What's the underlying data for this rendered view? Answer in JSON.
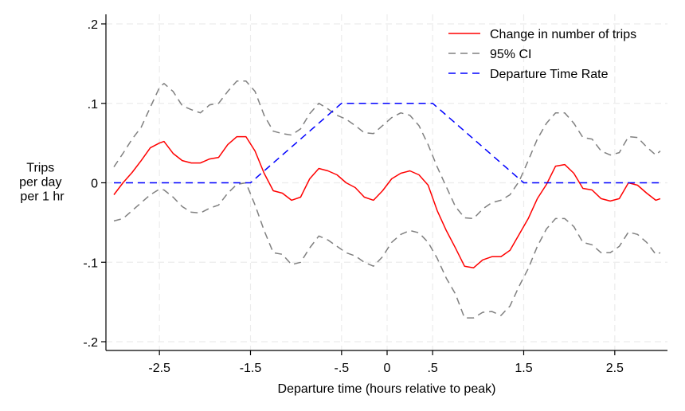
{
  "chart_data": {
    "type": "line",
    "title": "",
    "xlabel": "Departure time (hours relative to peak)",
    "ylabel_lines": [
      "Trips",
      "per day",
      "per 1 hr"
    ],
    "xlim": [
      -3.0,
      3.0
    ],
    "ylim": [
      -0.2,
      0.2
    ],
    "x_ticks": [
      -2.5,
      -1.5,
      -0.5,
      0,
      0.5,
      1.5,
      2.5
    ],
    "x_tick_labels": [
      "-2.5",
      "-1.5",
      "-.5",
      "0",
      ".5",
      "1.5",
      "2.5"
    ],
    "y_ticks": [
      0.2,
      0.1,
      0,
      -0.1,
      -0.2
    ],
    "y_tick_labels": [
      ".2",
      ".1",
      "0",
      "-.1",
      "-.2"
    ],
    "grid": true,
    "legend_position": "top-right",
    "series": [
      {
        "name": "Change in number of trips",
        "color": "#ff0000",
        "style": "solid",
        "points": [
          [
            -3.0,
            -0.015
          ],
          [
            -2.9,
            0.0
          ],
          [
            -2.8,
            0.013
          ],
          [
            -2.7,
            0.028
          ],
          [
            -2.6,
            0.044
          ],
          [
            -2.5,
            0.05
          ],
          [
            -2.45,
            0.052
          ],
          [
            -2.35,
            0.037
          ],
          [
            -2.25,
            0.028
          ],
          [
            -2.15,
            0.025
          ],
          [
            -2.05,
            0.025
          ],
          [
            -1.95,
            0.03
          ],
          [
            -1.85,
            0.032
          ],
          [
            -1.75,
            0.048
          ],
          [
            -1.65,
            0.058
          ],
          [
            -1.55,
            0.058
          ],
          [
            -1.45,
            0.04
          ],
          [
            -1.35,
            0.012
          ],
          [
            -1.25,
            -0.01
          ],
          [
            -1.15,
            -0.013
          ],
          [
            -1.05,
            -0.022
          ],
          [
            -0.95,
            -0.018
          ],
          [
            -0.85,
            0.005
          ],
          [
            -0.75,
            0.018
          ],
          [
            -0.65,
            0.015
          ],
          [
            -0.55,
            0.01
          ],
          [
            -0.45,
            0.0
          ],
          [
            -0.35,
            -0.006
          ],
          [
            -0.25,
            -0.018
          ],
          [
            -0.15,
            -0.022
          ],
          [
            -0.05,
            -0.01
          ],
          [
            0.05,
            0.005
          ],
          [
            0.15,
            0.012
          ],
          [
            0.25,
            0.015
          ],
          [
            0.35,
            0.01
          ],
          [
            0.45,
            -0.003
          ],
          [
            0.55,
            -0.035
          ],
          [
            0.65,
            -0.06
          ],
          [
            0.75,
            -0.082
          ],
          [
            0.85,
            -0.105
          ],
          [
            0.95,
            -0.107
          ],
          [
            1.05,
            -0.097
          ],
          [
            1.15,
            -0.093
          ],
          [
            1.25,
            -0.093
          ],
          [
            1.35,
            -0.085
          ],
          [
            1.45,
            -0.065
          ],
          [
            1.55,
            -0.045
          ],
          [
            1.65,
            -0.02
          ],
          [
            1.75,
            -0.002
          ],
          [
            1.85,
            0.021
          ],
          [
            1.95,
            0.023
          ],
          [
            2.05,
            0.012
          ],
          [
            2.15,
            -0.007
          ],
          [
            2.25,
            -0.009
          ],
          [
            2.35,
            -0.02
          ],
          [
            2.45,
            -0.023
          ],
          [
            2.55,
            -0.02
          ],
          [
            2.65,
            0.0
          ],
          [
            2.75,
            -0.003
          ],
          [
            2.85,
            -0.013
          ],
          [
            2.95,
            -0.022
          ],
          [
            3.0,
            -0.02
          ]
        ]
      },
      {
        "name": "95% CI",
        "color": "#808080",
        "style": "dashed",
        "points": [
          [
            -3.0,
            0.02
          ],
          [
            -2.9,
            0.037
          ],
          [
            -2.8,
            0.055
          ],
          [
            -2.7,
            0.07
          ],
          [
            -2.6,
            0.095
          ],
          [
            -2.5,
            0.12
          ],
          [
            -2.45,
            0.125
          ],
          [
            -2.35,
            0.115
          ],
          [
            -2.25,
            0.097
          ],
          [
            -2.15,
            0.092
          ],
          [
            -2.05,
            0.088
          ],
          [
            -1.95,
            0.098
          ],
          [
            -1.85,
            0.1
          ],
          [
            -1.75,
            0.115
          ],
          [
            -1.65,
            0.128
          ],
          [
            -1.55,
            0.128
          ],
          [
            -1.45,
            0.115
          ],
          [
            -1.35,
            0.085
          ],
          [
            -1.25,
            0.065
          ],
          [
            -1.15,
            0.062
          ],
          [
            -1.05,
            0.06
          ],
          [
            -0.95,
            0.068
          ],
          [
            -0.85,
            0.087
          ],
          [
            -0.75,
            0.1
          ],
          [
            -0.65,
            0.093
          ],
          [
            -0.55,
            0.085
          ],
          [
            -0.45,
            0.08
          ],
          [
            -0.35,
            0.072
          ],
          [
            -0.25,
            0.063
          ],
          [
            -0.15,
            0.062
          ],
          [
            -0.05,
            0.072
          ],
          [
            0.05,
            0.082
          ],
          [
            0.15,
            0.088
          ],
          [
            0.25,
            0.085
          ],
          [
            0.35,
            0.072
          ],
          [
            0.45,
            0.048
          ],
          [
            0.55,
            0.02
          ],
          [
            0.65,
            -0.005
          ],
          [
            0.75,
            -0.03
          ],
          [
            0.85,
            -0.044
          ],
          [
            0.95,
            -0.045
          ],
          [
            1.05,
            -0.033
          ],
          [
            1.15,
            -0.025
          ],
          [
            1.25,
            -0.022
          ],
          [
            1.35,
            -0.015
          ],
          [
            1.45,
            0.002
          ],
          [
            1.55,
            0.028
          ],
          [
            1.65,
            0.055
          ],
          [
            1.75,
            0.075
          ],
          [
            1.85,
            0.088
          ],
          [
            1.95,
            0.088
          ],
          [
            2.05,
            0.075
          ],
          [
            2.15,
            0.057
          ],
          [
            2.25,
            0.055
          ],
          [
            2.35,
            0.04
          ],
          [
            2.45,
            0.035
          ],
          [
            2.55,
            0.038
          ],
          [
            2.65,
            0.058
          ],
          [
            2.75,
            0.057
          ],
          [
            2.85,
            0.045
          ],
          [
            2.95,
            0.035
          ],
          [
            3.0,
            0.04
          ]
        ]
      },
      {
        "name": "95% CI",
        "color": "#808080",
        "style": "dashed",
        "show_in_legend": false,
        "points": [
          [
            -3.0,
            -0.048
          ],
          [
            -2.9,
            -0.045
          ],
          [
            -2.8,
            -0.035
          ],
          [
            -2.7,
            -0.025
          ],
          [
            -2.6,
            -0.015
          ],
          [
            -2.5,
            -0.008
          ],
          [
            -2.45,
            -0.009
          ],
          [
            -2.35,
            -0.018
          ],
          [
            -2.25,
            -0.03
          ],
          [
            -2.15,
            -0.037
          ],
          [
            -2.05,
            -0.038
          ],
          [
            -1.95,
            -0.032
          ],
          [
            -1.85,
            -0.028
          ],
          [
            -1.75,
            -0.013
          ],
          [
            -1.65,
            -0.002
          ],
          [
            -1.55,
            0.0
          ],
          [
            -1.45,
            -0.028
          ],
          [
            -1.35,
            -0.06
          ],
          [
            -1.25,
            -0.088
          ],
          [
            -1.15,
            -0.09
          ],
          [
            -1.05,
            -0.103
          ],
          [
            -0.95,
            -0.1
          ],
          [
            -0.85,
            -0.082
          ],
          [
            -0.75,
            -0.067
          ],
          [
            -0.65,
            -0.072
          ],
          [
            -0.55,
            -0.08
          ],
          [
            -0.45,
            -0.088
          ],
          [
            -0.35,
            -0.092
          ],
          [
            -0.25,
            -0.1
          ],
          [
            -0.15,
            -0.105
          ],
          [
            -0.05,
            -0.093
          ],
          [
            0.05,
            -0.075
          ],
          [
            0.15,
            -0.065
          ],
          [
            0.25,
            -0.06
          ],
          [
            0.35,
            -0.063
          ],
          [
            0.45,
            -0.075
          ],
          [
            0.55,
            -0.095
          ],
          [
            0.65,
            -0.12
          ],
          [
            0.75,
            -0.14
          ],
          [
            0.85,
            -0.17
          ],
          [
            0.95,
            -0.17
          ],
          [
            1.05,
            -0.163
          ],
          [
            1.15,
            -0.162
          ],
          [
            1.25,
            -0.167
          ],
          [
            1.35,
            -0.155
          ],
          [
            1.45,
            -0.13
          ],
          [
            1.55,
            -0.108
          ],
          [
            1.65,
            -0.08
          ],
          [
            1.75,
            -0.058
          ],
          [
            1.85,
            -0.045
          ],
          [
            1.95,
            -0.045
          ],
          [
            2.05,
            -0.055
          ],
          [
            2.15,
            -0.075
          ],
          [
            2.25,
            -0.078
          ],
          [
            2.35,
            -0.088
          ],
          [
            2.45,
            -0.088
          ],
          [
            2.55,
            -0.08
          ],
          [
            2.65,
            -0.062
          ],
          [
            2.75,
            -0.065
          ],
          [
            2.85,
            -0.075
          ],
          [
            2.95,
            -0.09
          ],
          [
            3.0,
            -0.088
          ]
        ]
      },
      {
        "name": "Departure Time Rate",
        "color": "#0000ff",
        "style": "dashed",
        "points": [
          [
            -3.0,
            0.0
          ],
          [
            -1.5,
            0.0
          ],
          [
            -0.5,
            0.1
          ],
          [
            0.5,
            0.1
          ],
          [
            1.5,
            0.0
          ],
          [
            3.0,
            0.0
          ]
        ]
      }
    ]
  }
}
